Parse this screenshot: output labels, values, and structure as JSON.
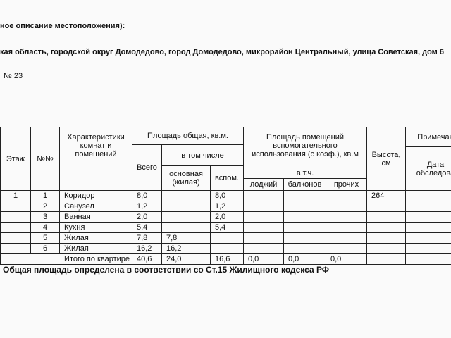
{
  "header": {
    "location_label": "ное описание местоположения):",
    "address": "кая область, городской округ Домодедово, город Домодедово, микрорайон Центральный, улица Советская, дом 6",
    "flat_number": "№ 23"
  },
  "table": {
    "headers": {
      "floor": "Этаж",
      "number": "№№",
      "description": "Характеристики комнат и помещений",
      "total_area": "Площадь общая, кв.м.",
      "total": "Всего",
      "including": "в том числе",
      "main": "основная (жилая)",
      "auxiliary": "вспом.",
      "aux_area": "Площадь помещений вспомогательного использования (с коэф.), кв.м",
      "of_which": "в т.ч.",
      "loggias": "лоджий",
      "balconies": "балконов",
      "other": "прочих",
      "height": "Высота, см",
      "notes": "Примечан",
      "survey_date": "Дата обследова"
    },
    "rows": [
      {
        "floor": "1",
        "number": "1",
        "name": "Коридор",
        "total": "8,0",
        "auxiliary": "8,0",
        "height": "264"
      },
      {
        "number": "2",
        "name": "Санузел",
        "total": "1,2",
        "auxiliary": "1,2"
      },
      {
        "number": "3",
        "name": "Ванная",
        "total": "2,0",
        "auxiliary": "2,0"
      },
      {
        "number": "4",
        "name": "Кухня",
        "total": "5,4",
        "auxiliary": "5,4"
      },
      {
        "number": "5",
        "name": "Жилая",
        "total": "7,8",
        "main": "7,8"
      },
      {
        "number": "6",
        "name": "Жилая",
        "total": "16,2",
        "main": "16,2"
      }
    ],
    "total": {
      "label": "Итого по квартире",
      "total": "40,6",
      "main": "24,0",
      "auxiliary": "16,6",
      "loggias": "0,0",
      "balconies": "0,0",
      "other": "0,0"
    }
  },
  "footer": "Общая площадь определена в соответствии со Ст.15 Жилищного кодекса РФ"
}
